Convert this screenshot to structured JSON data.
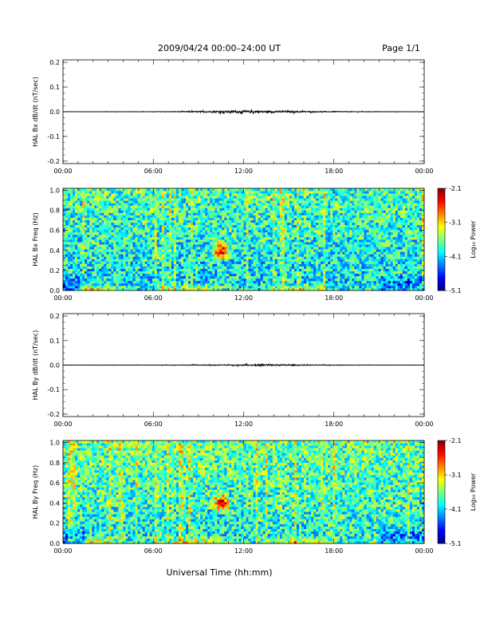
{
  "header": {
    "title": "2009/04/24  00:00–24:00 UT",
    "page": "Page 1/1"
  },
  "xaxis_label": "Universal Time (hh:mm)",
  "chart_data": [
    {
      "type": "line",
      "ylabel": "HAL Bx dB/dt (nT/sec)",
      "xlim": [
        0,
        24
      ],
      "ylim": [
        -0.21,
        0.21
      ],
      "x_ticks": [
        "00:00",
        "06:00",
        "12:00",
        "18:00",
        "00:00"
      ],
      "y_ticks": [
        "0.2",
        "0.1",
        "0.0",
        "-0.1",
        "-0.2"
      ],
      "y_tick_values": [
        0.2,
        0.1,
        0.0,
        -0.1,
        -0.2
      ],
      "series": [
        {
          "x": [
            0,
            1,
            2,
            3,
            4,
            5,
            6,
            7,
            8,
            9,
            10,
            10.5,
            11,
            11.5,
            12,
            12.5,
            13,
            13.5,
            14,
            14.5,
            15,
            16,
            17,
            18,
            19,
            20,
            21,
            22,
            23,
            24
          ],
          "y": [
            0.0005,
            0.0006,
            0.0008,
            0.001,
            0.0008,
            0.0008,
            0.001,
            0.0015,
            0.002,
            0.003,
            0.004,
            0.005,
            0.005,
            0.006,
            0.005,
            0.005,
            0.006,
            0.005,
            0.004,
            0.004,
            0.004,
            0.003,
            0.002,
            0.002,
            0.0015,
            0.0012,
            0.001,
            0.001,
            0.0008,
            0.0006
          ]
        }
      ]
    },
    {
      "type": "heatmap",
      "ylabel": "HAL Bx Freq (Hz)",
      "xlim": [
        0,
        24
      ],
      "ylim": [
        0,
        1.02
      ],
      "x_ticks": [
        "00:00",
        "06:00",
        "12:00",
        "18:00",
        "00:00"
      ],
      "y_ticks": [
        "1.0",
        "0.8",
        "0.6",
        "0.4",
        "0.2",
        "0.0"
      ],
      "y_tick_values": [
        1.0,
        0.8,
        0.6,
        0.4,
        0.2,
        0.0
      ],
      "colorbar": {
        "label": "Log₁₀ Power",
        "ticks": [
          "-2.1",
          "-3.1",
          "-4.1",
          "-5.1"
        ],
        "range": [
          -5.1,
          -2.1
        ]
      },
      "features": {
        "background_log_power": -3.9,
        "hotspot": {
          "time_h": 10.5,
          "freq_hz": 0.4,
          "log_power": -2.3
        },
        "low_freq_band": {
          "freq_hz": 0.02,
          "log_power": -3.0
        }
      }
    },
    {
      "type": "line",
      "ylabel": "HAL By dB/dt (nT/sec)",
      "xlim": [
        0,
        24
      ],
      "ylim": [
        -0.21,
        0.21
      ],
      "x_ticks": [
        "00:00",
        "06:00",
        "12:00",
        "18:00",
        "00:00"
      ],
      "y_ticks": [
        "0.2",
        "0.1",
        "0.0",
        "-0.1",
        "-0.2"
      ],
      "y_tick_values": [
        0.2,
        0.1,
        0.0,
        -0.1,
        -0.2
      ],
      "series": [
        {
          "x": [
            0,
            1,
            2,
            3,
            4,
            5,
            6,
            7,
            8,
            9,
            10,
            11,
            12,
            12.5,
            13,
            13.5,
            14,
            14.5,
            15,
            16,
            17,
            18,
            19,
            20,
            21,
            22,
            23,
            24
          ],
          "y": [
            0.0005,
            0.0005,
            0.0006,
            0.0007,
            0.0007,
            0.0008,
            0.0009,
            0.001,
            0.0012,
            0.0015,
            0.0018,
            0.002,
            0.0025,
            0.003,
            0.004,
            0.005,
            0.004,
            0.003,
            0.0025,
            0.002,
            0.0015,
            0.0012,
            0.001,
            0.0009,
            0.0008,
            0.0007,
            0.0006,
            0.0005
          ]
        }
      ]
    },
    {
      "type": "heatmap",
      "ylabel": "HAL By Freq (Hz)",
      "xlim": [
        0,
        24
      ],
      "ylim": [
        0,
        1.02
      ],
      "x_ticks": [
        "00:00",
        "06:00",
        "12:00",
        "18:00",
        "00:00"
      ],
      "y_ticks": [
        "1.0",
        "0.8",
        "0.6",
        "0.4",
        "0.2",
        "0.0"
      ],
      "y_tick_values": [
        1.0,
        0.8,
        0.6,
        0.4,
        0.2,
        0.0
      ],
      "colorbar": {
        "label": "Log₁₀ Power",
        "ticks": [
          "-2.1",
          "-3.1",
          "-4.1",
          "-5.1"
        ],
        "range": [
          -5.1,
          -2.1
        ]
      },
      "features": {
        "background_log_power": -3.8,
        "hotspot": {
          "time_h": 10.5,
          "freq_hz": 0.41,
          "log_power": -2.4
        },
        "low_freq_band": {
          "freq_hz": 0.03,
          "log_power": -2.9
        }
      }
    }
  ]
}
